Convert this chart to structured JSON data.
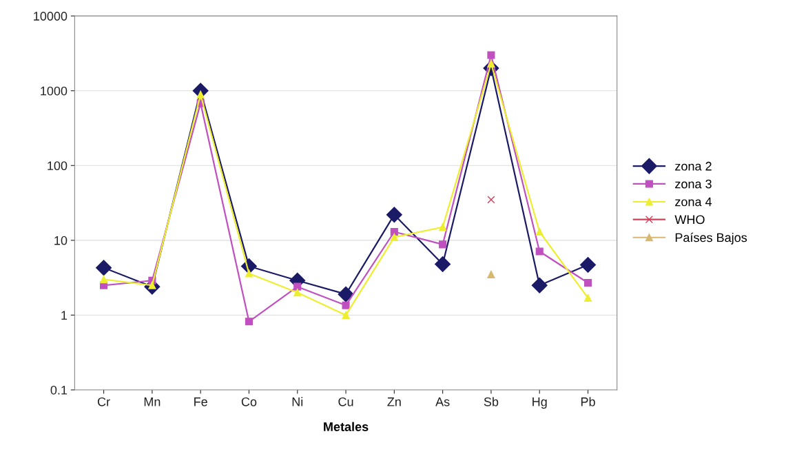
{
  "chart_data": {
    "type": "line",
    "xlabel": "Metales",
    "categories": [
      "Cr",
      "Mn",
      "Fe",
      "Co",
      "Ni",
      "Cu",
      "Zn",
      "As",
      "Sb",
      "Hg",
      "Pb"
    ],
    "series": [
      {
        "name": "zona 2",
        "color": "#1a1a66",
        "marker": "diamond",
        "values": [
          4.3,
          2.4,
          1000,
          4.5,
          2.9,
          1.9,
          22,
          4.8,
          2000,
          2.5,
          4.7
        ]
      },
      {
        "name": "zona 3",
        "color": "#c050c0",
        "marker": "square",
        "values": [
          2.5,
          2.9,
          680,
          0.82,
          2.4,
          1.35,
          13,
          8.8,
          3000,
          7.1,
          2.7
        ]
      },
      {
        "name": "zona 4",
        "color": "#eeee30",
        "marker": "triangle",
        "values": [
          3.0,
          2.5,
          890,
          3.6,
          2.0,
          1.0,
          11,
          15,
          2300,
          13,
          1.7
        ]
      },
      {
        "name": "WHO",
        "color": "#d0405a",
        "marker": "cross",
        "values": [
          null,
          null,
          null,
          null,
          null,
          null,
          null,
          null,
          35,
          null,
          null
        ]
      },
      {
        "name": "Países Bajos",
        "color": "#d8b870",
        "marker": "triangle",
        "values": [
          null,
          null,
          null,
          null,
          null,
          null,
          null,
          null,
          3.5,
          null,
          null
        ]
      }
    ],
    "log": "y",
    "ylim": [
      0.1,
      10000
    ],
    "yticks": [
      0.1,
      1,
      10,
      100,
      1000,
      10000
    ],
    "grid": "y",
    "legend": "right",
    "line_style": "solid"
  }
}
